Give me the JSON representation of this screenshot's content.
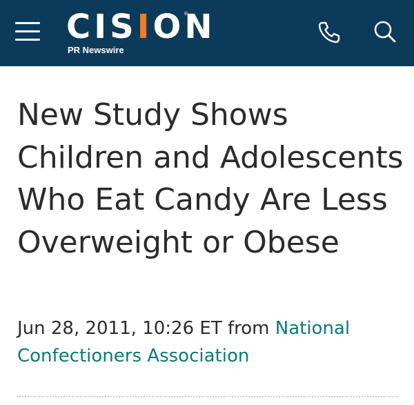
{
  "header": {
    "brand_prefix": "CIS",
    "brand_accent": "I",
    "brand_suffix": "ON",
    "brand_tm": "®",
    "brand_sub": "PR Newswire",
    "bg_color": "#0c3a5a",
    "accent_color": "#f07c2a",
    "menu_icon": "hamburger-icon",
    "phone_icon": "phone-icon",
    "search_icon": "search-icon"
  },
  "article": {
    "title": "New Study Shows Children and Adolescents Who Eat Candy Are Less Overweight or Obese",
    "date": "Jun 28, 2011, 10:26 ET",
    "from_label": "from",
    "source": "National Confectioners Association",
    "source_color": "#0b7a78"
  }
}
